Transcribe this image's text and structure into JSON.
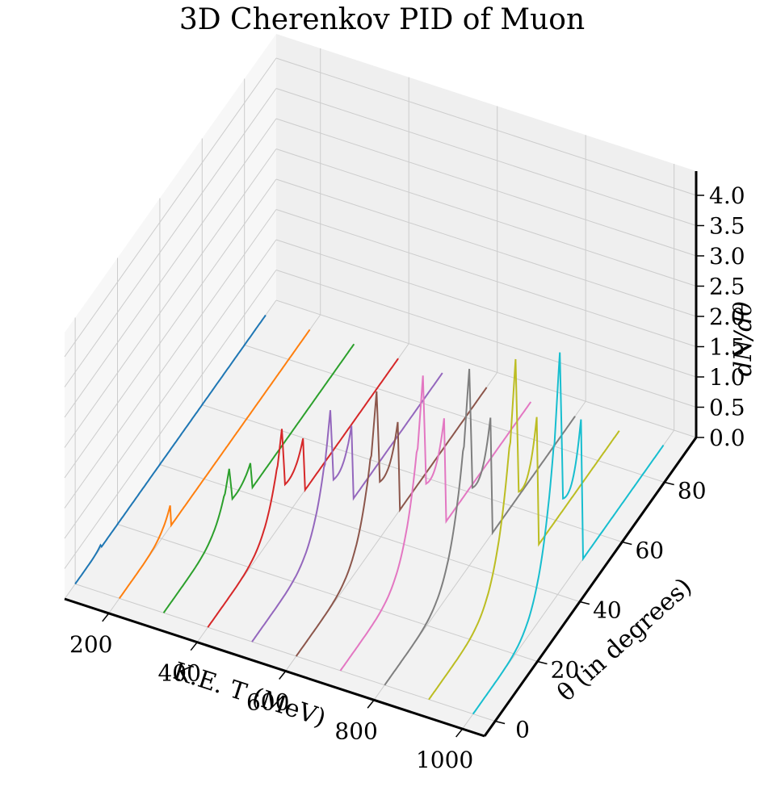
{
  "chart_data": {
    "type": "line",
    "title": "3D Cherenkov PID of Muon",
    "xlabel": "K.E. T (MeV)",
    "ylabel": "θ (in degrees)",
    "zlabel": "dN/dθ",
    "x_ticks": [
      "200",
      "400",
      "600",
      "800",
      "1000"
    ],
    "y_ticks": [
      "0",
      "20",
      "40",
      "60",
      "80"
    ],
    "z_ticks": [
      "0.0",
      "0.5",
      "1.0",
      "1.5",
      "2.0",
      "2.5",
      "3.0",
      "3.5",
      "4.0"
    ],
    "xlim": [
      100,
      1050
    ],
    "ylim": [
      -5,
      95
    ],
    "zlim": [
      0,
      4.4
    ],
    "grid": true,
    "series": [
      {
        "T": 100,
        "color": "#1f77b4",
        "theta_c": 12,
        "peak": 0.05,
        "tail": 0.0
      },
      {
        "T": 200,
        "color": "#ff7f0e",
        "theta_c": 24,
        "peak": 0.35,
        "tail": 0.0
      },
      {
        "T": 300,
        "color": "#2ca02c",
        "theta_c": 31,
        "peak": 0.85,
        "tail": 0.45
      },
      {
        "T": 400,
        "color": "#d62728",
        "theta_c": 35,
        "peak": 1.55,
        "tail": 0.9
      },
      {
        "T": 500,
        "color": "#9467bd",
        "theta_c": 37,
        "peak": 2.0,
        "tail": 1.25
      },
      {
        "T": 600,
        "color": "#8c564b",
        "theta_c": 38,
        "peak": 2.5,
        "tail": 1.5
      },
      {
        "T": 700,
        "color": "#e377c2",
        "theta_c": 39,
        "peak": 2.95,
        "tail": 1.75
      },
      {
        "T": 800,
        "color": "#7f7f7f",
        "theta_c": 40,
        "peak": 3.25,
        "tail": 1.95
      },
      {
        "T": 900,
        "color": "#bcbd22",
        "theta_c": 41,
        "peak": 3.6,
        "tail": 2.15
      },
      {
        "T": 1000,
        "color": "#17becf",
        "theta_c": 41,
        "peak": 3.95,
        "tail": 2.35
      }
    ]
  }
}
